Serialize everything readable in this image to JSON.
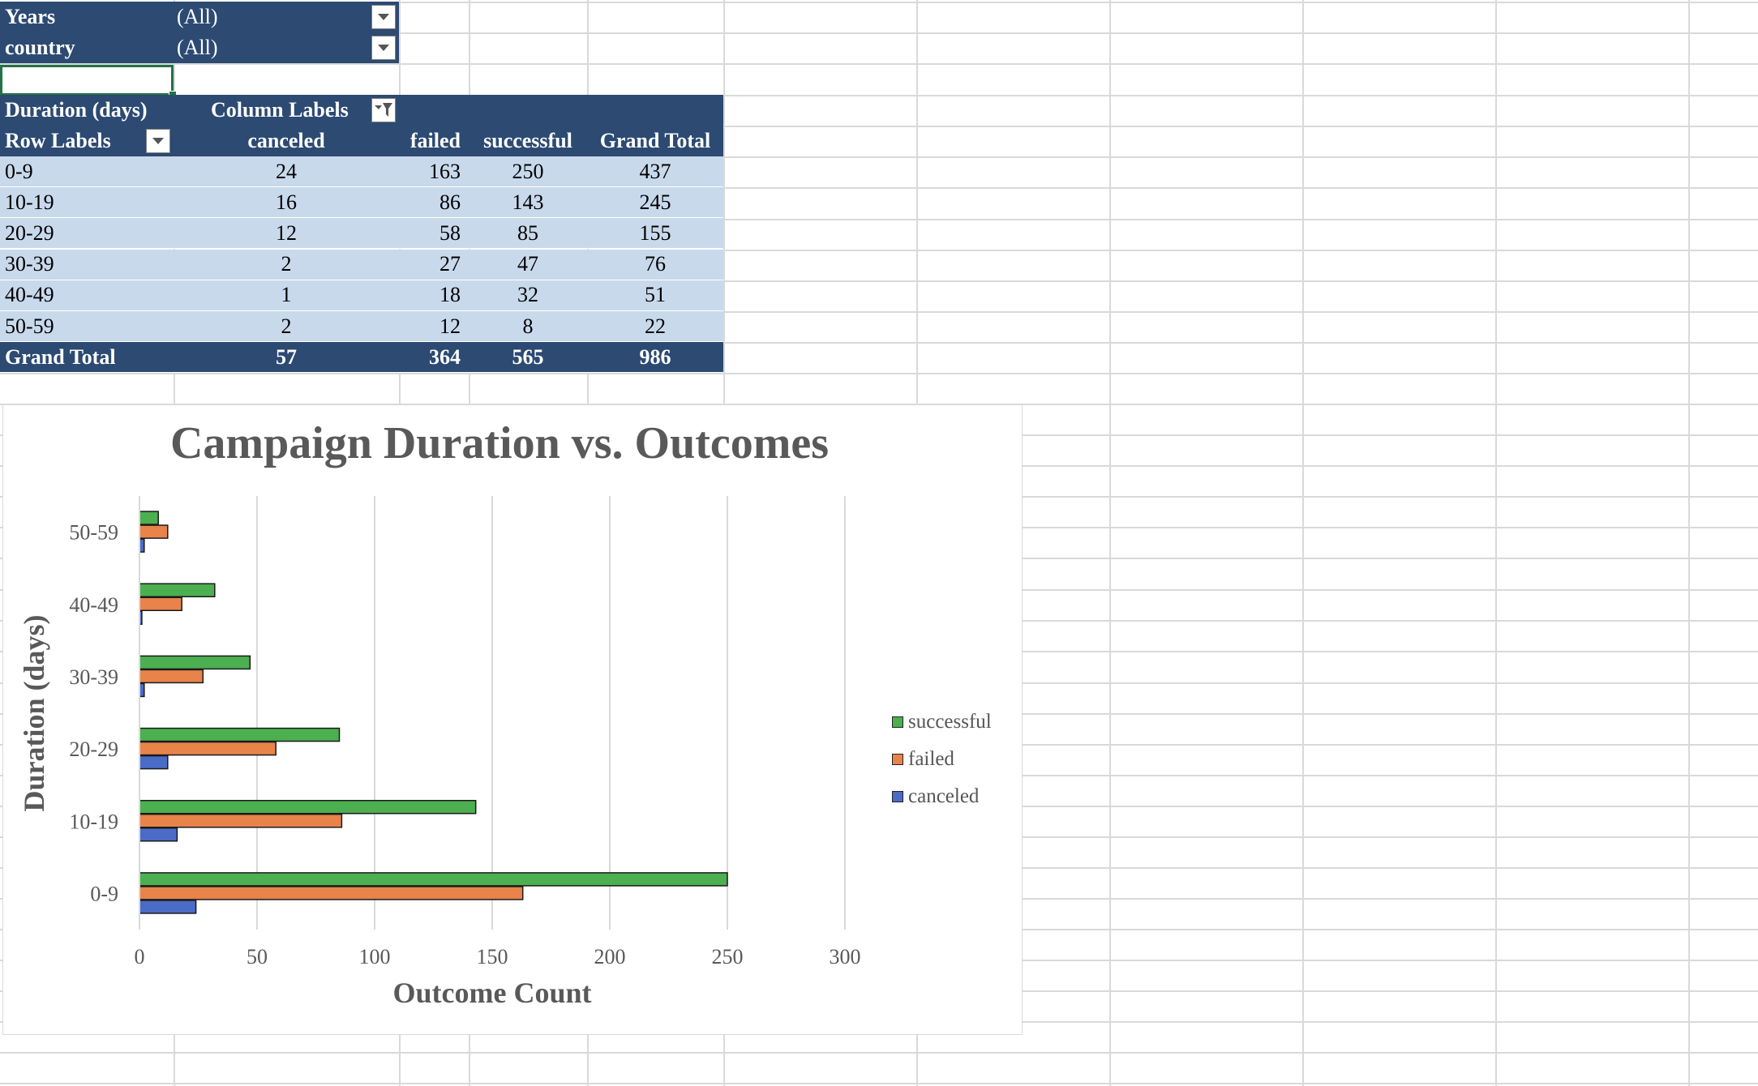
{
  "filters": [
    {
      "label": "Years",
      "value": "(All)"
    },
    {
      "label": "country",
      "value": "(All)"
    }
  ],
  "pivot": {
    "row_field": "Duration (days)",
    "column_labels": "Column Labels",
    "row_labels": "Row Labels",
    "columns": [
      "canceled",
      "failed",
      "successful",
      "Grand Total"
    ],
    "rows": [
      {
        "label": "0-9",
        "values": [
          "24",
          "163",
          "250",
          "437"
        ]
      },
      {
        "label": "10-19",
        "values": [
          "16",
          "86",
          "143",
          "245"
        ]
      },
      {
        "label": "20-29",
        "values": [
          "12",
          "58",
          "85",
          "155"
        ]
      },
      {
        "label": "30-39",
        "values": [
          "2",
          "27",
          "47",
          "76"
        ]
      },
      {
        "label": "40-49",
        "values": [
          "1",
          "18",
          "32",
          "51"
        ]
      },
      {
        "label": "50-59",
        "values": [
          "2",
          "12",
          "8",
          "22"
        ]
      }
    ],
    "grand_total": {
      "label": "Grand Total",
      "values": [
        "57",
        "364",
        "565",
        "986"
      ]
    }
  },
  "colors": {
    "header_bg": "#2c4a72",
    "row_bg": "#c9d9ec",
    "successful": "#4caf50",
    "failed": "#e8834a",
    "canceled": "#4a6cc7"
  },
  "chart_data": {
    "type": "bar",
    "orientation": "horizontal",
    "title": "Campaign Duration vs. Outcomes",
    "xlabel": "Outcome Count",
    "ylabel": "Duration (days)",
    "categories": [
      "0-9",
      "10-19",
      "20-29",
      "30-39",
      "40-49",
      "50-59"
    ],
    "series": [
      {
        "name": "canceled",
        "values": [
          24,
          16,
          12,
          2,
          1,
          2
        ],
        "color": "#4a6cc7"
      },
      {
        "name": "failed",
        "values": [
          163,
          86,
          58,
          27,
          18,
          12
        ],
        "color": "#e8834a"
      },
      {
        "name": "successful",
        "values": [
          250,
          143,
          85,
          47,
          32,
          8
        ],
        "color": "#4caf50"
      }
    ],
    "xlim": [
      0,
      300
    ],
    "xticks": [
      "0",
      "50",
      "100",
      "150",
      "200",
      "250",
      "300"
    ],
    "grid": true,
    "legend": "right",
    "legend_order": [
      "successful",
      "failed",
      "canceled"
    ]
  }
}
